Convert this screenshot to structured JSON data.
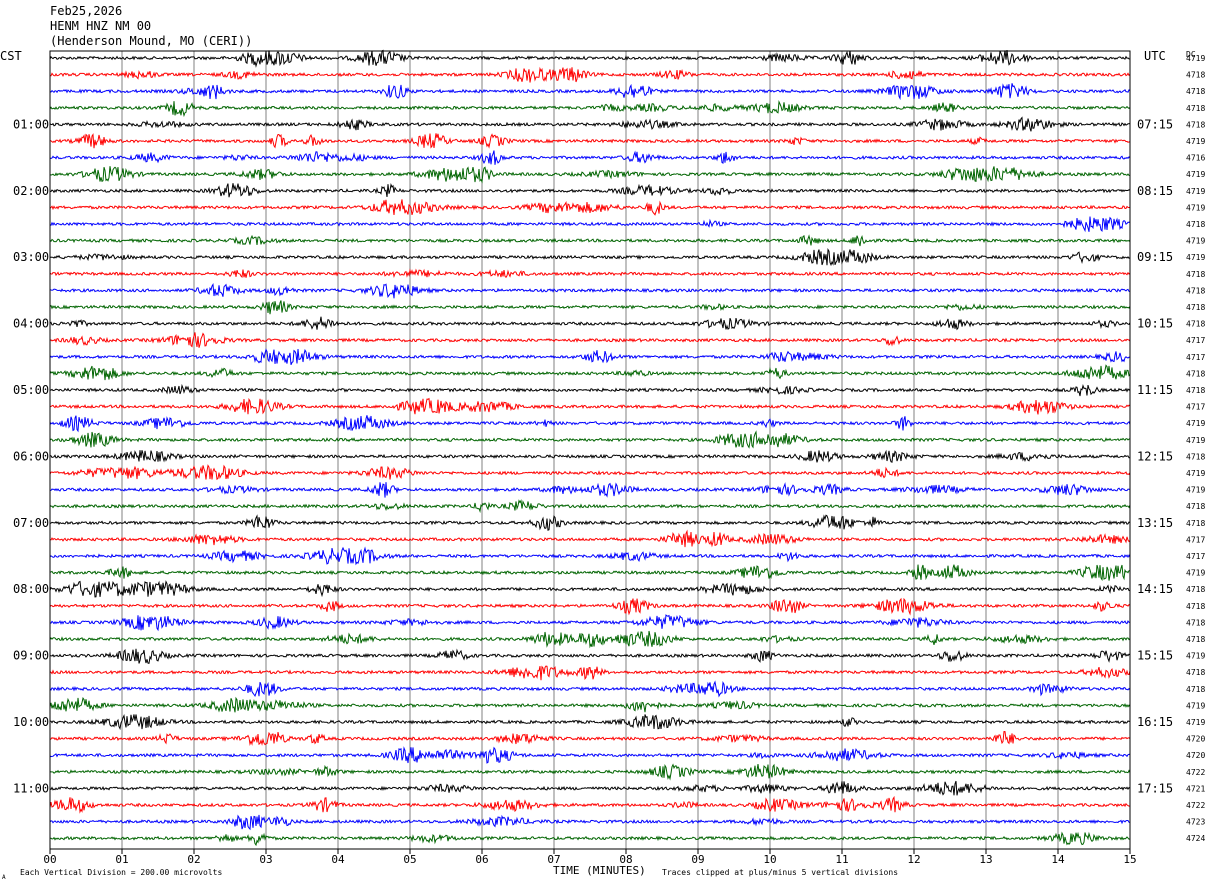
{
  "header": {
    "date": "Feb25,2026",
    "station": "HENM HNZ NM 00",
    "location": "(Henderson Mound, MO (CERI))"
  },
  "left_zone_label": "CST",
  "right_zone_label": "UTC",
  "dc_label": "DC",
  "footer": {
    "scale_note": "Each Vertical Division =  200.00 microvolts",
    "xlabel": "TIME (MINUTES)",
    "clip_note": "Traces clipped at plus/minus 5 vertical divisions",
    "corner_mark": "A"
  },
  "colors": {
    "cycle": [
      "#000000",
      "#ff0000",
      "#0000ff",
      "#006400"
    ],
    "grid": "#808080",
    "frame": "#000000"
  },
  "chart_data": {
    "type": "line",
    "title": "",
    "xlabel": "TIME (MINUTES)",
    "xlim": [
      0,
      15
    ],
    "x_ticks": [
      "00",
      "01",
      "02",
      "03",
      "04",
      "05",
      "06",
      "07",
      "08",
      "09",
      "10",
      "11",
      "12",
      "13",
      "14",
      "15"
    ],
    "lines_per_hour": 4,
    "minutes_per_line": 15,
    "left_hour_labels": [
      "01:00",
      "02:00",
      "03:00",
      "04:00",
      "05:00",
      "06:00",
      "07:00",
      "08:00",
      "09:00",
      "10:00",
      "11:00"
    ],
    "right_hour_labels": [
      "07:15",
      "08:15",
      "09:15",
      "10:15",
      "11:15",
      "12:15",
      "13:15",
      "14:15",
      "15:15",
      "16:15",
      "17:15"
    ],
    "dc_values": [
      "4719",
      "4718",
      "4718",
      "4718",
      "4718",
      "4719",
      "4716",
      "4719",
      "4719",
      "4719",
      "4718",
      "4719",
      "4719",
      "4718",
      "4718",
      "4718",
      "4718",
      "4717",
      "4717",
      "4718",
      "4718",
      "4717",
      "4719",
      "4719",
      "4718",
      "4719",
      "4719",
      "4718",
      "4718",
      "4717",
      "4717",
      "4719",
      "4718",
      "4718",
      "4718",
      "4718",
      "4719",
      "4718",
      "4718",
      "4719",
      "4719",
      "4720",
      "4720",
      "4722",
      "4721",
      "4722",
      "4723",
      "4724"
    ],
    "clip_divisions": 5,
    "microvolts_per_division": 200.0
  }
}
